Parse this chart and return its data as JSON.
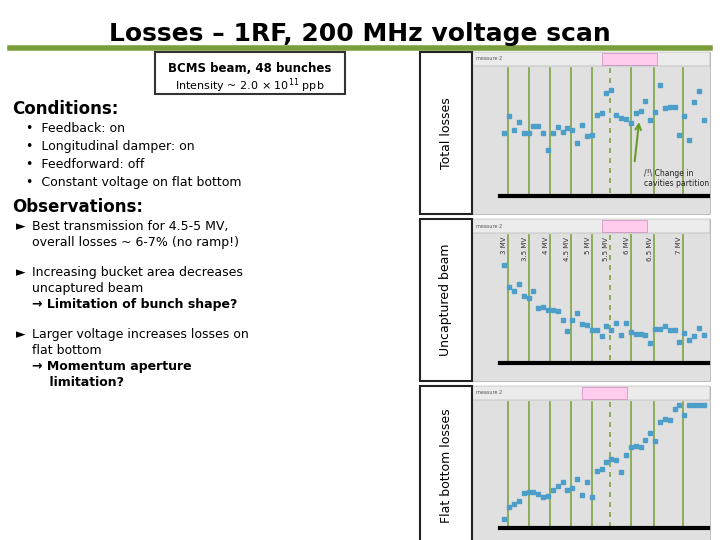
{
  "title": "Losses – 1RF, 200 MHz voltage scan",
  "title_fontsize": 18,
  "background_color": "#ffffff",
  "divider_color": "#7a9e3b",
  "conditions_header": "Conditions:",
  "conditions_items": [
    "Feedback: on",
    "Longitudinal damper: on",
    "Feedforward: off",
    "Constant voltage on flat bottom"
  ],
  "observations_header": "Observations:",
  "right_panel": {
    "panel_labels": [
      "Total losses",
      "Uncaptured beam",
      "Flat bottom losses"
    ],
    "green_line_color": "#6b9a2a",
    "dashed_line_color": "#6b9a2a",
    "voltage_labels": [
      "3 MV",
      "3.5 MV",
      "4 MV",
      "4.5 MV",
      "5 MV",
      "5.5 MV",
      "6 MV",
      "6.5 MV",
      "7 MV"
    ],
    "data_color": "#4d9ec9",
    "annotation_color": "#6b9a2a"
  }
}
